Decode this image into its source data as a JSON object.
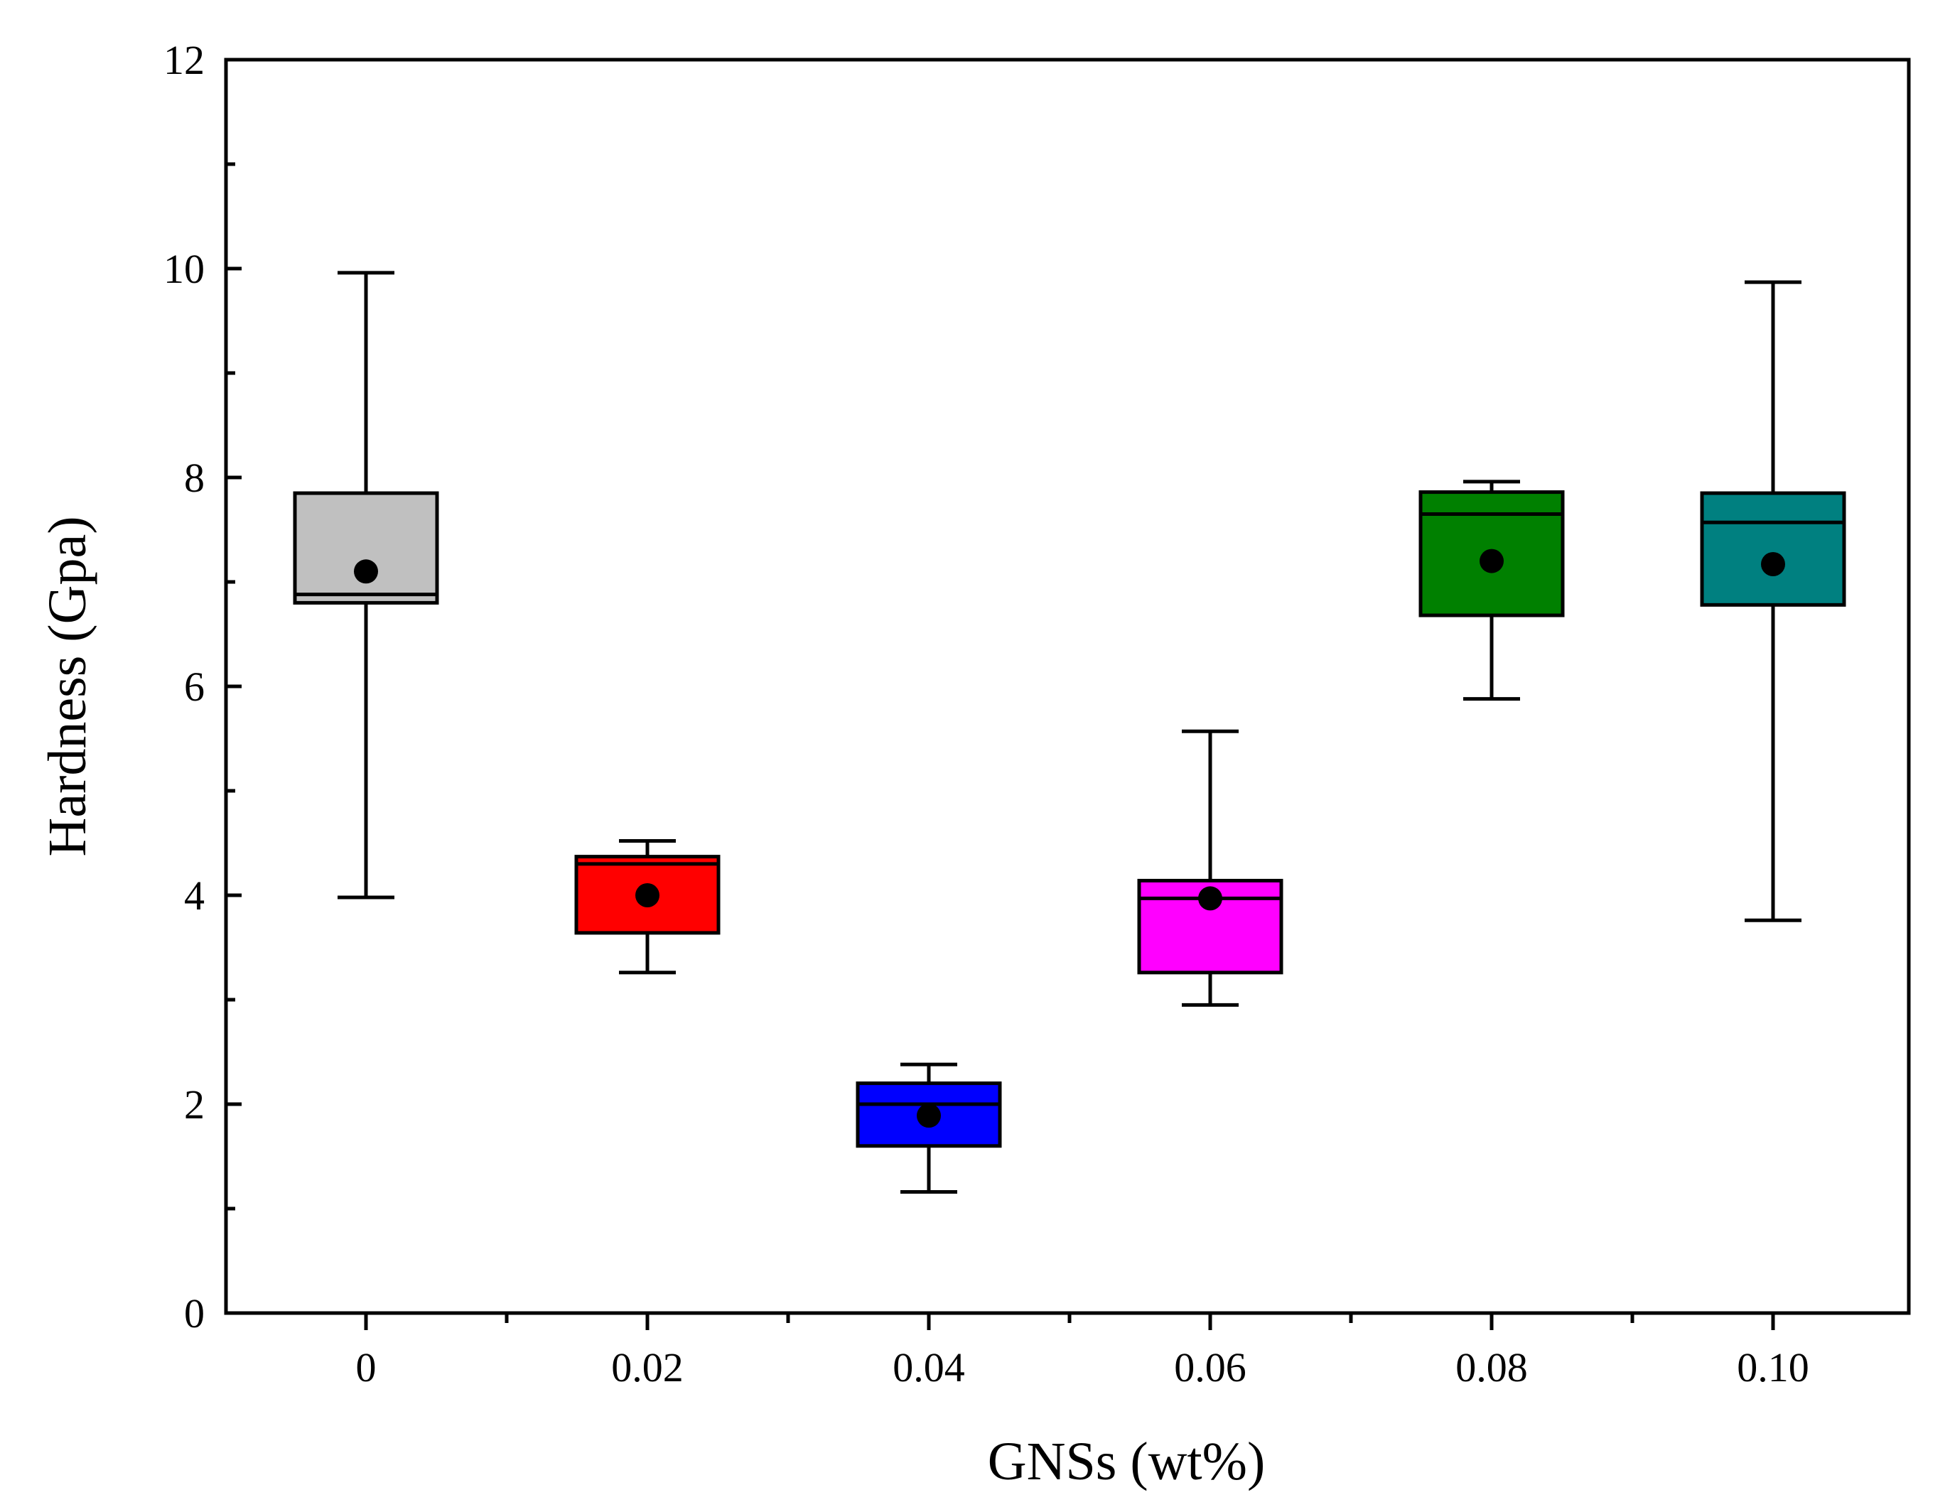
{
  "chart_data": {
    "type": "box",
    "xlabel": "GNSs (wt%)",
    "ylabel": "Hardness (Gpa)",
    "ylim": [
      0,
      12
    ],
    "yticks": [
      0,
      2,
      4,
      6,
      8,
      10,
      12
    ],
    "grid": false,
    "categories": [
      "0",
      "0.02",
      "0.04",
      "0.06",
      "0.08",
      "0.10"
    ],
    "boxes": [
      {
        "category": "0",
        "whisker_low": 3.98,
        "q1": 6.8,
        "median": 6.88,
        "q3": 7.85,
        "whisker_high": 9.96,
        "mean": 7.1,
        "color": "#c0c0c0"
      },
      {
        "category": "0.02",
        "whisker_low": 3.26,
        "q1": 3.64,
        "median": 4.3,
        "q3": 4.37,
        "whisker_high": 4.52,
        "mean": 4.0,
        "color": "#ff0000"
      },
      {
        "category": "0.04",
        "whisker_low": 1.16,
        "q1": 1.6,
        "median": 2.0,
        "q3": 2.2,
        "whisker_high": 2.38,
        "mean": 1.89,
        "color": "#0000ff"
      },
      {
        "category": "0.06",
        "whisker_low": 2.95,
        "q1": 3.26,
        "median": 3.97,
        "q3": 4.14,
        "whisker_high": 5.57,
        "mean": 3.97,
        "color": "#ff00ff"
      },
      {
        "category": "0.08",
        "whisker_low": 5.88,
        "q1": 6.68,
        "median": 7.65,
        "q3": 7.86,
        "whisker_high": 7.96,
        "mean": 7.2,
        "color": "#008000"
      },
      {
        "category": "0.10",
        "whisker_low": 3.76,
        "q1": 6.78,
        "median": 7.57,
        "q3": 7.85,
        "whisker_high": 9.87,
        "mean": 7.17,
        "color": "#008080"
      }
    ]
  }
}
